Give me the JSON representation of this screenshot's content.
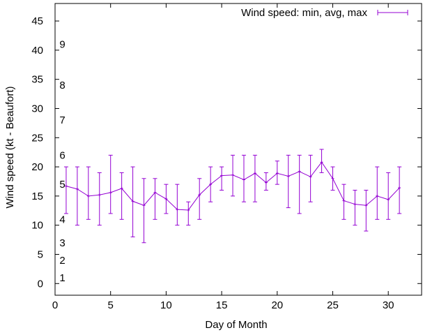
{
  "chart_data": {
    "type": "line",
    "title": "",
    "xlabel": "Day of Month",
    "ylabel": "Wind speed (kt - Beaufort)",
    "xlim": [
      0,
      33
    ],
    "ylim": [
      -2,
      48
    ],
    "x_ticks": [
      0,
      5,
      10,
      15,
      20,
      25,
      30
    ],
    "y_ticks": [
      0,
      5,
      10,
      15,
      20,
      25,
      30,
      35,
      40,
      45
    ],
    "beaufort_labels": [
      {
        "label": "1",
        "y": 1
      },
      {
        "label": "2",
        "y": 4
      },
      {
        "label": "3",
        "y": 7
      },
      {
        "label": "4",
        "y": 11
      },
      {
        "label": "5",
        "y": 17
      },
      {
        "label": "6",
        "y": 22
      },
      {
        "label": "7",
        "y": 28
      },
      {
        "label": "8",
        "y": 34
      },
      {
        "label": "9",
        "y": 41
      }
    ],
    "legend_position": "top-right",
    "series": [
      {
        "name": "Wind speed: min, avg, max",
        "color": "#9400d3",
        "x": [
          1,
          2,
          3,
          4,
          5,
          6,
          7,
          8,
          9,
          10,
          11,
          12,
          13,
          14,
          15,
          16,
          17,
          18,
          19,
          20,
          21,
          22,
          23,
          24,
          25,
          26,
          27,
          28,
          29,
          30,
          31
        ],
        "avg": [
          16.7,
          16.2,
          15.0,
          15.2,
          15.6,
          16.3,
          14.1,
          13.4,
          15.6,
          14.5,
          12.7,
          12.6,
          15.2,
          17.0,
          18.5,
          18.6,
          17.8,
          18.9,
          17.3,
          18.9,
          18.4,
          19.2,
          18.3,
          20.8,
          18.0,
          14.2,
          13.6,
          13.4,
          15.0,
          14.4,
          16.4
        ],
        "min": [
          12,
          10,
          11,
          10,
          12,
          11,
          8,
          7,
          11,
          12,
          10,
          10,
          11,
          14,
          16,
          15,
          14,
          14,
          16,
          17,
          13,
          12,
          14,
          19,
          16,
          11,
          10,
          9,
          11,
          11,
          12
        ],
        "max": [
          20,
          20,
          20,
          19,
          22,
          19,
          20,
          18,
          18,
          17,
          17,
          14,
          18,
          20,
          20,
          22,
          22,
          22,
          19,
          21,
          22,
          22,
          22,
          23,
          20,
          17,
          16,
          16,
          20,
          19,
          20
        ]
      }
    ]
  }
}
